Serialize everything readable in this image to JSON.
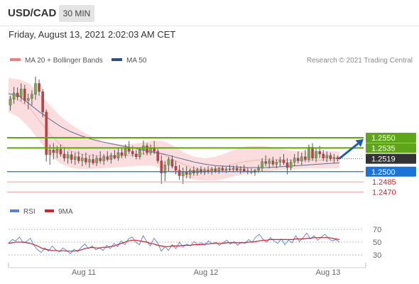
{
  "header": {
    "symbol": "USD/CAD",
    "timeframe": "30 MIN"
  },
  "timestamp": "Friday, August 13, 2021 2:02:03 AM CET",
  "legend": {
    "bollinger": {
      "label": "MA 20 + Bollinger Bands",
      "color": "#f08080"
    },
    "ma50": {
      "label": "MA 50",
      "color": "#2c4f8a"
    },
    "credit": "Research © 2021 Trading Central"
  },
  "colors": {
    "resistance": "#5ea51a",
    "current": "#333333",
    "support": "#1a73d9",
    "support_faint": "#f0a0a0",
    "up_candle": "#77a84a",
    "down_candle": "#d4383d",
    "band_fill": "#fbd9d9",
    "projection_arrow": "#1e5ca8"
  },
  "chart_data": [
    {
      "type": "candlestick",
      "title": "USD/CAD",
      "x_tick_labels": [
        "Aug 11",
        "Aug 12",
        "Aug 13"
      ],
      "ylim": [
        1.246,
        1.264
      ],
      "series": [
        {
          "name": "MA 20 + Bollinger Bands",
          "kind": "bands",
          "upper": [
            1.2638,
            1.2636,
            1.263,
            1.2615,
            1.2598,
            1.2582,
            1.257,
            1.256,
            1.2552,
            1.2545,
            1.2542,
            1.254,
            1.2541,
            1.2543,
            1.2546,
            1.2545,
            1.2538,
            1.2528,
            1.2522,
            1.252,
            1.2522,
            1.2527,
            1.2533,
            1.2537,
            1.2538,
            1.2537,
            1.2535,
            1.2532,
            1.253,
            1.253,
            1.253,
            1.253,
            1.253
          ],
          "middle": [
            1.261,
            1.2605,
            1.2595,
            1.2575,
            1.2555,
            1.254,
            1.2531,
            1.2526,
            1.2524,
            1.2523,
            1.2523,
            1.2523,
            1.2524,
            1.2526,
            1.2528,
            1.2525,
            1.2517,
            1.251,
            1.2505,
            1.2503,
            1.2504,
            1.2508,
            1.2512,
            1.2515,
            1.2517,
            1.2518,
            1.2518,
            1.2517,
            1.2517,
            1.2517,
            1.2517,
            1.2517,
            1.2517
          ],
          "lower": [
            1.2588,
            1.258,
            1.2565,
            1.2545,
            1.2525,
            1.2512,
            1.2506,
            1.2504,
            1.2504,
            1.2505,
            1.2506,
            1.2507,
            1.2508,
            1.2509,
            1.2509,
            1.2504,
            1.2497,
            1.2492,
            1.2488,
            1.2487,
            1.2487,
            1.249,
            1.2494,
            1.2497,
            1.25,
            1.2501,
            1.2502,
            1.2503,
            1.2504,
            1.2505,
            1.2505,
            1.2505,
            1.2505
          ]
        },
        {
          "name": "MA 50",
          "kind": "line",
          "values": [
            1.2615,
            1.2612,
            1.26,
            1.2588,
            1.2577,
            1.2567,
            1.2559,
            1.2553,
            1.2548,
            1.2544,
            1.2541,
            1.2538,
            1.2535,
            1.2532,
            1.2529,
            1.2526,
            1.2522,
            1.2518,
            1.2514,
            1.2511,
            1.2509,
            1.2508,
            1.2507,
            1.2506,
            1.2506,
            1.2506,
            1.2507,
            1.2508,
            1.2509,
            1.251,
            1.2511,
            1.2512,
            1.2513
          ]
        },
        {
          "name": "USD/CAD",
          "kind": "candles",
          "candles": [
            [
              1.2598,
              1.2612,
              1.259,
              1.2607
            ],
            [
              1.2607,
              1.2625,
              1.26,
              1.2616
            ],
            [
              1.2616,
              1.2624,
              1.2605,
              1.261
            ],
            [
              1.261,
              1.263,
              1.2604,
              1.2622
            ],
            [
              1.2622,
              1.2628,
              1.26,
              1.2605
            ],
            [
              1.2605,
              1.2615,
              1.2592,
              1.2608
            ],
            [
              1.2608,
              1.262,
              1.2598,
              1.2614
            ],
            [
              1.2614,
              1.264,
              1.2606,
              1.263
            ],
            [
              1.263,
              1.2636,
              1.2612,
              1.2618
            ],
            [
              1.2618,
              1.2622,
              1.258,
              1.2588
            ],
            [
              1.2588,
              1.2592,
              1.2515,
              1.2525
            ],
            [
              1.2525,
              1.254,
              1.251,
              1.2532
            ],
            [
              1.2532,
              1.2542,
              1.2518,
              1.2528
            ],
            [
              1.2528,
              1.2538,
              1.252,
              1.2533
            ],
            [
              1.2533,
              1.254,
              1.2522,
              1.2526
            ],
            [
              1.2526,
              1.2535,
              1.2515,
              1.252
            ],
            [
              1.252,
              1.253,
              1.2512,
              1.2525
            ],
            [
              1.2525,
              1.253,
              1.2512,
              1.2518
            ],
            [
              1.2518,
              1.2528,
              1.251,
              1.2522
            ],
            [
              1.2522,
              1.253,
              1.2512,
              1.2516
            ],
            [
              1.2516,
              1.2526,
              1.2508,
              1.252
            ],
            [
              1.252,
              1.2528,
              1.251,
              1.2514
            ],
            [
              1.2514,
              1.2524,
              1.2506,
              1.2518
            ],
            [
              1.2518,
              1.2526,
              1.251,
              1.2513
            ],
            [
              1.2513,
              1.2524,
              1.2508,
              1.252
            ],
            [
              1.252,
              1.253,
              1.2512,
              1.2516
            ],
            [
              1.2516,
              1.2526,
              1.251,
              1.2522
            ],
            [
              1.2522,
              1.253,
              1.2515,
              1.2518
            ],
            [
              1.2518,
              1.2528,
              1.2512,
              1.2524
            ],
            [
              1.2524,
              1.2532,
              1.2518,
              1.252
            ],
            [
              1.252,
              1.2534,
              1.2516,
              1.2528
            ],
            [
              1.2528,
              1.2536,
              1.252,
              1.2524
            ],
            [
              1.2524,
              1.254,
              1.252,
              1.2534
            ],
            [
              1.2534,
              1.2545,
              1.2526,
              1.253
            ],
            [
              1.253,
              1.2538,
              1.2522,
              1.2526
            ],
            [
              1.2526,
              1.2532,
              1.2518,
              1.2522
            ],
            [
              1.2522,
              1.2536,
              1.2518,
              1.2532
            ],
            [
              1.2532,
              1.2546,
              1.2525,
              1.2538
            ],
            [
              1.2538,
              1.2542,
              1.2524,
              1.2528
            ],
            [
              1.2528,
              1.254,
              1.2524,
              1.2535
            ],
            [
              1.2535,
              1.2545,
              1.2526,
              1.253
            ],
            [
              1.253,
              1.2534,
              1.2512,
              1.2516
            ],
            [
              1.2516,
              1.2524,
              1.2482,
              1.2498
            ],
            [
              1.2498,
              1.2516,
              1.2486,
              1.251
            ],
            [
              1.251,
              1.2522,
              1.25,
              1.2518
            ],
            [
              1.2518,
              1.2524,
              1.2505,
              1.2508
            ],
            [
              1.2508,
              1.2516,
              1.2496,
              1.2502
            ],
            [
              1.2502,
              1.251,
              1.2488,
              1.2494
            ],
            [
              1.2494,
              1.2506,
              1.2482,
              1.25
            ],
            [
              1.25,
              1.2508,
              1.249,
              1.2496
            ],
            [
              1.2496,
              1.2505,
              1.249,
              1.2502
            ],
            [
              1.2502,
              1.2508,
              1.2494,
              1.2498
            ],
            [
              1.2498,
              1.2506,
              1.2494,
              1.2503
            ],
            [
              1.2503,
              1.2508,
              1.2496,
              1.2499
            ],
            [
              1.2499,
              1.2506,
              1.2495,
              1.2502
            ],
            [
              1.2502,
              1.2508,
              1.2497,
              1.25
            ],
            [
              1.25,
              1.2507,
              1.2496,
              1.2504
            ],
            [
              1.2504,
              1.2508,
              1.2498,
              1.2501
            ],
            [
              1.2501,
              1.2507,
              1.2497,
              1.2505
            ],
            [
              1.2505,
              1.2509,
              1.2499,
              1.2502
            ],
            [
              1.2502,
              1.2507,
              1.2498,
              1.2504
            ],
            [
              1.2504,
              1.251,
              1.25,
              1.2503
            ],
            [
              1.2503,
              1.2509,
              1.2499,
              1.2505
            ],
            [
              1.2505,
              1.251,
              1.25,
              1.2502
            ],
            [
              1.2502,
              1.2508,
              1.2497,
              1.2504
            ],
            [
              1.2504,
              1.251,
              1.2499,
              1.2501
            ],
            [
              1.2501,
              1.2506,
              1.2496,
              1.25
            ],
            [
              1.25,
              1.2505,
              1.2496,
              1.2499
            ],
            [
              1.2499,
              1.2504,
              1.2494,
              1.2502
            ],
            [
              1.2502,
              1.251,
              1.2498,
              1.2505
            ],
            [
              1.2505,
              1.252,
              1.25,
              1.2515
            ],
            [
              1.2515,
              1.2524,
              1.2508,
              1.2512
            ],
            [
              1.2512,
              1.252,
              1.2505,
              1.2516
            ],
            [
              1.2516,
              1.2522,
              1.2508,
              1.2511
            ],
            [
              1.2511,
              1.2518,
              1.2505,
              1.2514
            ],
            [
              1.2514,
              1.2522,
              1.2508,
              1.2517
            ],
            [
              1.2517,
              1.2526,
              1.251,
              1.2513
            ],
            [
              1.2513,
              1.252,
              1.2496,
              1.2506
            ],
            [
              1.2506,
              1.2518,
              1.2502,
              1.2514
            ],
            [
              1.2514,
              1.2526,
              1.2508,
              1.252
            ],
            [
              1.252,
              1.253,
              1.2512,
              1.2516
            ],
            [
              1.2516,
              1.2528,
              1.251,
              1.2522
            ],
            [
              1.2522,
              1.2532,
              1.2514,
              1.2518
            ],
            [
              1.2518,
              1.254,
              1.2514,
              1.2536
            ],
            [
              1.2536,
              1.2542,
              1.2516,
              1.252
            ],
            [
              1.252,
              1.2534,
              1.2514,
              1.253
            ],
            [
              1.253,
              1.2538,
              1.252,
              1.2526
            ],
            [
              1.2526,
              1.2532,
              1.2516,
              1.252
            ],
            [
              1.252,
              1.253,
              1.2514,
              1.2524
            ],
            [
              1.2524,
              1.2528,
              1.2516,
              1.2519
            ],
            [
              1.2519,
              1.2526,
              1.2512,
              1.2521
            ],
            [
              1.2521,
              1.2524,
              1.2515,
              1.2519
            ]
          ]
        }
      ],
      "levels": [
        {
          "value": 1.255,
          "label": "1.2550",
          "role": "resistance",
          "style": "solid-label"
        },
        {
          "value": 1.2535,
          "label": "1.2535",
          "role": "resistance",
          "style": "solid-label"
        },
        {
          "value": 1.2519,
          "label": "1.2519",
          "role": "current",
          "style": "dotted-label"
        },
        {
          "value": 1.25,
          "label": "1.2500",
          "role": "support",
          "style": "solid-label"
        },
        {
          "value": 1.2485,
          "label": "1.2485",
          "role": "support_faint",
          "style": "text"
        },
        {
          "value": 1.247,
          "label": "1.2470",
          "role": "support_faint",
          "style": "text"
        }
      ],
      "projection": {
        "from": 1.2519,
        "to": 1.255
      }
    },
    {
      "type": "line",
      "title": "RSI",
      "legend": [
        {
          "name": "RSI",
          "color": "#5b7fd6"
        },
        {
          "name": "9MA",
          "color": "#d4232a"
        }
      ],
      "y_ticks": [
        30,
        50,
        70
      ],
      "ylim": [
        18,
        82
      ],
      "series": [
        {
          "name": "RSI",
          "values": [
            48,
            54,
            52,
            58,
            49,
            51,
            56,
            45,
            38,
            34,
            41,
            36,
            44,
            38,
            35,
            41,
            37,
            32,
            39,
            35,
            42,
            47,
            40,
            44,
            38,
            41,
            37,
            45,
            40,
            48,
            43,
            52,
            46,
            55,
            58,
            50,
            46,
            60,
            51,
            44,
            56,
            49,
            36,
            43,
            37,
            46,
            40,
            50,
            42,
            47,
            44,
            51,
            46,
            49,
            45,
            52,
            47,
            50,
            45,
            49,
            53,
            47,
            51,
            45,
            50,
            48,
            54,
            50,
            58,
            62,
            54,
            50,
            57,
            52,
            48,
            55,
            46,
            53,
            49,
            60,
            51,
            57,
            64,
            55,
            60,
            53,
            58,
            62,
            56,
            52,
            54,
            50
          ]
        },
        {
          "name": "9MA",
          "values": [
            48,
            49,
            50,
            50,
            50,
            49,
            48,
            46,
            44,
            41,
            39,
            38,
            37,
            37,
            36,
            37,
            36,
            36,
            36,
            37,
            38,
            40,
            41,
            42,
            41,
            41,
            42,
            42,
            43,
            44,
            46,
            48,
            50,
            52,
            53,
            53,
            52,
            51,
            50,
            48,
            47,
            45,
            44,
            43,
            43,
            44,
            44,
            44,
            45,
            45,
            45,
            46,
            46,
            46,
            47,
            47,
            48,
            48,
            48,
            48,
            49,
            49,
            49,
            49,
            49,
            49,
            50,
            50,
            51,
            52,
            53,
            53,
            54,
            54,
            54,
            54,
            54,
            54,
            54,
            55,
            55,
            55,
            56,
            56,
            57,
            57,
            57,
            57,
            57,
            56,
            55,
            54
          ]
        }
      ]
    }
  ]
}
